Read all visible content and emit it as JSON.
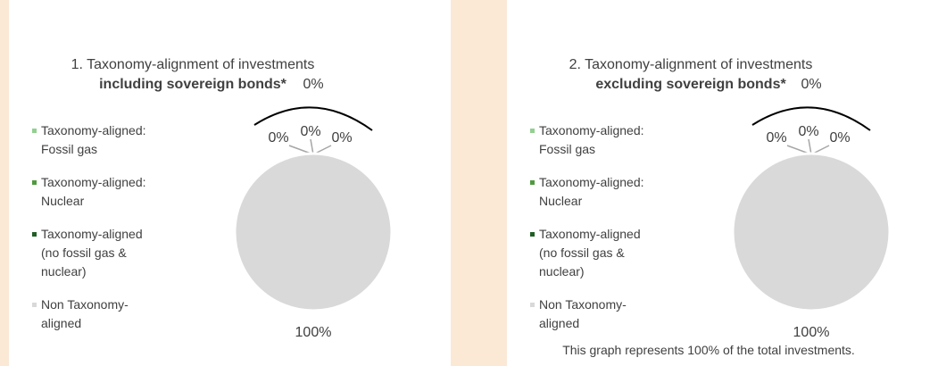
{
  "chart_data": [
    {
      "type": "pie",
      "title": "1. Taxonomy-alignment of investments",
      "subtitle": "including sovereign bonds*",
      "categories": [
        "Taxonomy-aligned: Fossil gas",
        "Taxonomy-aligned: Nuclear",
        "Taxonomy-aligned (no fossil gas & nuclear)",
        "Non Taxonomy-aligned"
      ],
      "values": [
        0,
        0,
        0,
        100
      ],
      "value_labels": [
        "0%",
        "0%",
        "0%",
        "100%"
      ],
      "colors": [
        "#92d090",
        "#4f9a3e",
        "#1f5e24",
        "#d9d9d9"
      ],
      "taxonomy_aligned_total": 0,
      "taxonomy_aligned_total_label": "0%",
      "legend": "left"
    },
    {
      "type": "pie",
      "title": "2. Taxonomy-alignment of investments",
      "subtitle": "excluding sovereign bonds*",
      "categories": [
        "Taxonomy-aligned: Fossil gas",
        "Taxonomy-aligned: Nuclear",
        "Taxonomy-aligned (no fossil gas & nuclear)",
        "Non Taxonomy-aligned"
      ],
      "values": [
        0,
        0,
        0,
        100
      ],
      "value_labels": [
        "0%",
        "0%",
        "0%",
        "100%"
      ],
      "colors": [
        "#92d090",
        "#4f9a3e",
        "#1f5e24",
        "#d9d9d9"
      ],
      "taxonomy_aligned_total": 0,
      "taxonomy_aligned_total_label": "0%",
      "legend": "left",
      "note": "This graph represents 100% of the total investments."
    }
  ]
}
